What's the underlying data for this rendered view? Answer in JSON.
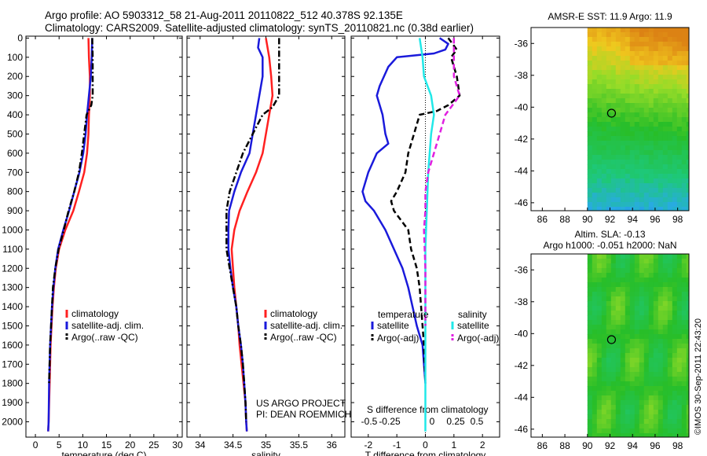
{
  "header": {
    "line1": "Argo profile: AO 5903312_58 21-Aug-2011 20110822_512 40.378S 92.135E",
    "line2": "Climatology: CARS2009. Satellite-adjusted climatology: synTS_20110821.nc (0.38d earlier)"
  },
  "footer": {
    "stamp": "©IMOS 30-Sep-2011 22:43:20"
  },
  "colors": {
    "red": "#ff2020",
    "blue": "#1a1adb",
    "black": "#000000",
    "cyan": "#20e8e8",
    "magenta": "#e020e0"
  },
  "chart_data": [
    {
      "type": "line",
      "xlabel": "temperature (deg C)",
      "ylabel": "",
      "xlim": [
        -2,
        31
      ],
      "ylim": [
        2080,
        -10
      ],
      "xticks": [
        0,
        5,
        10,
        15,
        20,
        25,
        30
      ],
      "yticks": [
        0,
        100,
        200,
        300,
        400,
        500,
        600,
        700,
        800,
        900,
        1000,
        1100,
        1200,
        1300,
        1400,
        1500,
        1600,
        1700,
        1800,
        1900,
        2000
      ],
      "legend": [
        "climatology",
        "satellite-adj. clim.",
        "Argo(..raw -QC)"
      ],
      "series": [
        {
          "name": "climatology",
          "color": "red",
          "style": "solid",
          "points": [
            [
              11.2,
              0
            ],
            [
              11.3,
              100
            ],
            [
              11.5,
              200
            ],
            [
              11.5,
              300
            ],
            [
              11.3,
              400
            ],
            [
              11.2,
              500
            ],
            [
              10.9,
              600
            ],
            [
              10.3,
              700
            ],
            [
              9.2,
              800
            ],
            [
              8.0,
              900
            ],
            [
              6.3,
              1000
            ],
            [
              5.0,
              1100
            ],
            [
              4.3,
              1200
            ],
            [
              3.9,
              1300
            ],
            [
              3.6,
              1400
            ],
            [
              3.4,
              1500
            ],
            [
              3.2,
              1600
            ],
            [
              3.0,
              1800
            ],
            [
              2.8,
              2000
            ],
            [
              2.7,
              2050
            ]
          ]
        },
        {
          "name": "satellite-adj. clim.",
          "color": "blue",
          "style": "solid",
          "points": [
            [
              12.0,
              0
            ],
            [
              11.9,
              100
            ],
            [
              11.7,
              200
            ],
            [
              11.3,
              300
            ],
            [
              10.9,
              400
            ],
            [
              10.6,
              500
            ],
            [
              10.1,
              600
            ],
            [
              9.3,
              700
            ],
            [
              8.2,
              800
            ],
            [
              7.1,
              900
            ],
            [
              5.9,
              1000
            ],
            [
              4.8,
              1100
            ],
            [
              4.2,
              1200
            ],
            [
              3.8,
              1300
            ],
            [
              3.5,
              1400
            ],
            [
              3.3,
              1500
            ],
            [
              3.1,
              1600
            ],
            [
              2.9,
              1800
            ],
            [
              2.8,
              2000
            ],
            [
              2.7,
              2050
            ]
          ]
        },
        {
          "name": "Argo(..raw -QC)",
          "color": "black",
          "style": "dashdot",
          "points": [
            [
              12.0,
              0
            ],
            [
              12.1,
              100
            ],
            [
              12.1,
              200
            ],
            [
              12.1,
              300
            ],
            [
              11.8,
              350
            ],
            [
              10.8,
              400
            ],
            [
              10.3,
              500
            ],
            [
              9.8,
              600
            ],
            [
              9.2,
              700
            ],
            [
              8.2,
              800
            ],
            [
              7.0,
              900
            ],
            [
              6.0,
              1000
            ],
            [
              4.9,
              1100
            ],
            [
              4.2,
              1200
            ],
            [
              3.7,
              1300
            ],
            [
              3.5,
              1400
            ],
            [
              3.3,
              1500
            ],
            [
              3.1,
              1600
            ],
            [
              2.9,
              1800
            ]
          ]
        }
      ]
    },
    {
      "type": "line",
      "xlabel": "salinity",
      "ylabel": "",
      "xlim": [
        33.8,
        36.2
      ],
      "ylim": [
        2080,
        -10
      ],
      "xticks": [
        34,
        34.5,
        35,
        35.5,
        36
      ],
      "legend": [
        "climatology",
        "satellite-adj. clim.",
        "Argo(..raw -QC)"
      ],
      "annotation": [
        "US ARGO PROJECT",
        "PI: DEAN ROEMMICH"
      ],
      "series": [
        {
          "name": "climatology",
          "color": "red",
          "style": "solid",
          "points": [
            [
              35.0,
              0
            ],
            [
              35.05,
              100
            ],
            [
              35.08,
              200
            ],
            [
              35.1,
              300
            ],
            [
              35.05,
              400
            ],
            [
              35.0,
              500
            ],
            [
              34.95,
              600
            ],
            [
              34.85,
              700
            ],
            [
              34.72,
              800
            ],
            [
              34.6,
              900
            ],
            [
              34.52,
              1000
            ],
            [
              34.48,
              1100
            ],
            [
              34.5,
              1200
            ],
            [
              34.52,
              1300
            ],
            [
              34.55,
              1400
            ],
            [
              34.58,
              1500
            ],
            [
              34.6,
              1600
            ],
            [
              34.63,
              1700
            ],
            [
              34.66,
              1800
            ],
            [
              34.69,
              1900
            ],
            [
              34.7,
              2000
            ],
            [
              34.71,
              2050
            ]
          ]
        },
        {
          "name": "satellite-adj. clim.",
          "color": "blue",
          "style": "solid",
          "points": [
            [
              34.9,
              0
            ],
            [
              34.88,
              50
            ],
            [
              34.95,
              100
            ],
            [
              34.95,
              200
            ],
            [
              34.9,
              300
            ],
            [
              34.85,
              400
            ],
            [
              34.8,
              500
            ],
            [
              34.75,
              600
            ],
            [
              34.62,
              700
            ],
            [
              34.52,
              800
            ],
            [
              34.44,
              900
            ],
            [
              34.43,
              1000
            ],
            [
              34.43,
              1100
            ],
            [
              34.46,
              1200
            ],
            [
              34.5,
              1300
            ],
            [
              34.55,
              1400
            ],
            [
              34.58,
              1500
            ],
            [
              34.62,
              1600
            ],
            [
              34.65,
              1700
            ],
            [
              34.67,
              1800
            ],
            [
              34.69,
              1900
            ],
            [
              34.7,
              2000
            ],
            [
              34.71,
              2050
            ]
          ]
        },
        {
          "name": "Argo(..raw -QC)",
          "color": "black",
          "style": "dashdot",
          "points": [
            [
              35.2,
              0
            ],
            [
              35.2,
              50
            ],
            [
              35.2,
              100
            ],
            [
              35.2,
              200
            ],
            [
              35.2,
              300
            ],
            [
              35.1,
              360
            ],
            [
              34.95,
              400
            ],
            [
              34.8,
              500
            ],
            [
              34.65,
              600
            ],
            [
              34.55,
              700
            ],
            [
              34.45,
              800
            ],
            [
              34.4,
              900
            ],
            [
              34.4,
              1000
            ],
            [
              34.4,
              1100
            ],
            [
              34.45,
              1200
            ],
            [
              34.5,
              1300
            ],
            [
              34.55,
              1400
            ],
            [
              34.58,
              1500
            ],
            [
              34.62,
              1600
            ],
            [
              34.65,
              1700
            ],
            [
              34.67,
              1800
            ],
            [
              34.69,
              1900
            ],
            [
              34.7,
              2000
            ]
          ]
        }
      ]
    },
    {
      "type": "line",
      "xlabel": "T difference from climatology",
      "ylabel": "",
      "xlim": [
        -2.6,
        2.6
      ],
      "ylim": [
        2080,
        -10
      ],
      "xticks": [
        -2,
        -1,
        0,
        1,
        2
      ],
      "secondary_xlabel": "S difference from climatology",
      "secondary_xticks": [
        -0.5,
        -0.25,
        0,
        0.25,
        0.5
      ],
      "legend_groups": {
        "left": "temperature",
        "right": "salinity"
      },
      "legend": [
        "satellite",
        "Argo(-adj)",
        "satellite",
        "Argo(-adj)"
      ],
      "series": [
        {
          "name": "satellite",
          "group": "temperature",
          "color": "blue",
          "style": "solid",
          "points": [
            [
              0.5,
              0
            ],
            [
              0.8,
              30
            ],
            [
              0.7,
              60
            ],
            [
              0.3,
              80
            ],
            [
              -1.0,
              100
            ],
            [
              -1.3,
              150
            ],
            [
              -1.6,
              250
            ],
            [
              -1.7,
              300
            ],
            [
              -1.5,
              400
            ],
            [
              -1.4,
              500
            ],
            [
              -1.3,
              550
            ],
            [
              -1.7,
              600
            ],
            [
              -2.0,
              700
            ],
            [
              -2.2,
              800
            ],
            [
              -2.1,
              850
            ],
            [
              -1.8,
              900
            ],
            [
              -1.4,
              1000
            ],
            [
              -1.1,
              1100
            ],
            [
              -0.8,
              1200
            ],
            [
              -0.6,
              1300
            ],
            [
              -0.3,
              1500
            ],
            [
              -0.1,
              1600
            ],
            [
              0.0,
              1800
            ]
          ]
        },
        {
          "name": "Argo(-adj)",
          "group": "temperature",
          "color": "black",
          "style": "dashed",
          "points": [
            [
              0.8,
              0
            ],
            [
              1.1,
              60
            ],
            [
              0.9,
              100
            ],
            [
              1.1,
              200
            ],
            [
              1.2,
              300
            ],
            [
              0.8,
              350
            ],
            [
              0.4,
              380
            ],
            [
              -0.2,
              400
            ],
            [
              -0.4,
              500
            ],
            [
              -0.6,
              600
            ],
            [
              -0.7,
              700
            ],
            [
              -1.0,
              800
            ],
            [
              -1.2,
              850
            ],
            [
              -1.1,
              900
            ],
            [
              -0.6,
              1000
            ],
            [
              -0.5,
              1100
            ],
            [
              -0.3,
              1200
            ],
            [
              -0.2,
              1300
            ],
            [
              -0.1,
              1500
            ],
            [
              -0.05,
              1600
            ],
            [
              0.0,
              1800
            ]
          ]
        },
        {
          "name": "satellite",
          "group": "salinity",
          "color": "cyan",
          "style": "solid",
          "points": [
            [
              -0.2,
              0
            ],
            [
              -0.1,
              100
            ],
            [
              -0.05,
              200
            ],
            [
              0.2,
              300
            ],
            [
              0.3,
              400
            ],
            [
              0.2,
              500
            ],
            [
              0.1,
              700
            ],
            [
              0.05,
              900
            ],
            [
              0.0,
              1100
            ],
            [
              0.0,
              1500
            ],
            [
              0.0,
              2050
            ]
          ]
        },
        {
          "name": "Argo(-adj)",
          "group": "salinity",
          "color": "magenta",
          "style": "dashed",
          "points": [
            [
              1.0,
              0
            ],
            [
              1.0,
              100
            ],
            [
              1.0,
              200
            ],
            [
              1.2,
              300
            ],
            [
              0.7,
              400
            ],
            [
              0.5,
              500
            ],
            [
              0.3,
              600
            ],
            [
              0.1,
              700
            ],
            [
              0.0,
              800
            ],
            [
              0.0,
              900
            ],
            [
              -0.05,
              1000
            ],
            [
              0.0,
              1200
            ],
            [
              0.0,
              1500
            ]
          ]
        }
      ]
    },
    {
      "type": "heatmap",
      "title": "AMSR-E SST: 11.9 Argo: 11.9",
      "xlim": [
        85,
        99
      ],
      "ylim": [
        -46.5,
        -35
      ],
      "xticks": [
        86,
        88,
        90,
        92,
        94,
        96,
        98
      ],
      "yticks": [
        -36,
        -38,
        -40,
        -42,
        -44,
        -46
      ],
      "no_data_x_below": 90,
      "marker": {
        "lon": 92.135,
        "lat": -40.378
      }
    },
    {
      "type": "heatmap",
      "title": "Altim. SLA: -0.13",
      "subtitle": "Argo h1000: -0.051 h2000: NaN",
      "xlim": [
        85,
        99
      ],
      "ylim": [
        -46.5,
        -35
      ],
      "xticks": [
        86,
        88,
        90,
        92,
        94,
        96,
        98
      ],
      "yticks": [
        -36,
        -38,
        -40,
        -42,
        -44,
        -46
      ],
      "no_data_x_below": 90,
      "marker": {
        "lon": 92.135,
        "lat": -40.378
      }
    }
  ]
}
